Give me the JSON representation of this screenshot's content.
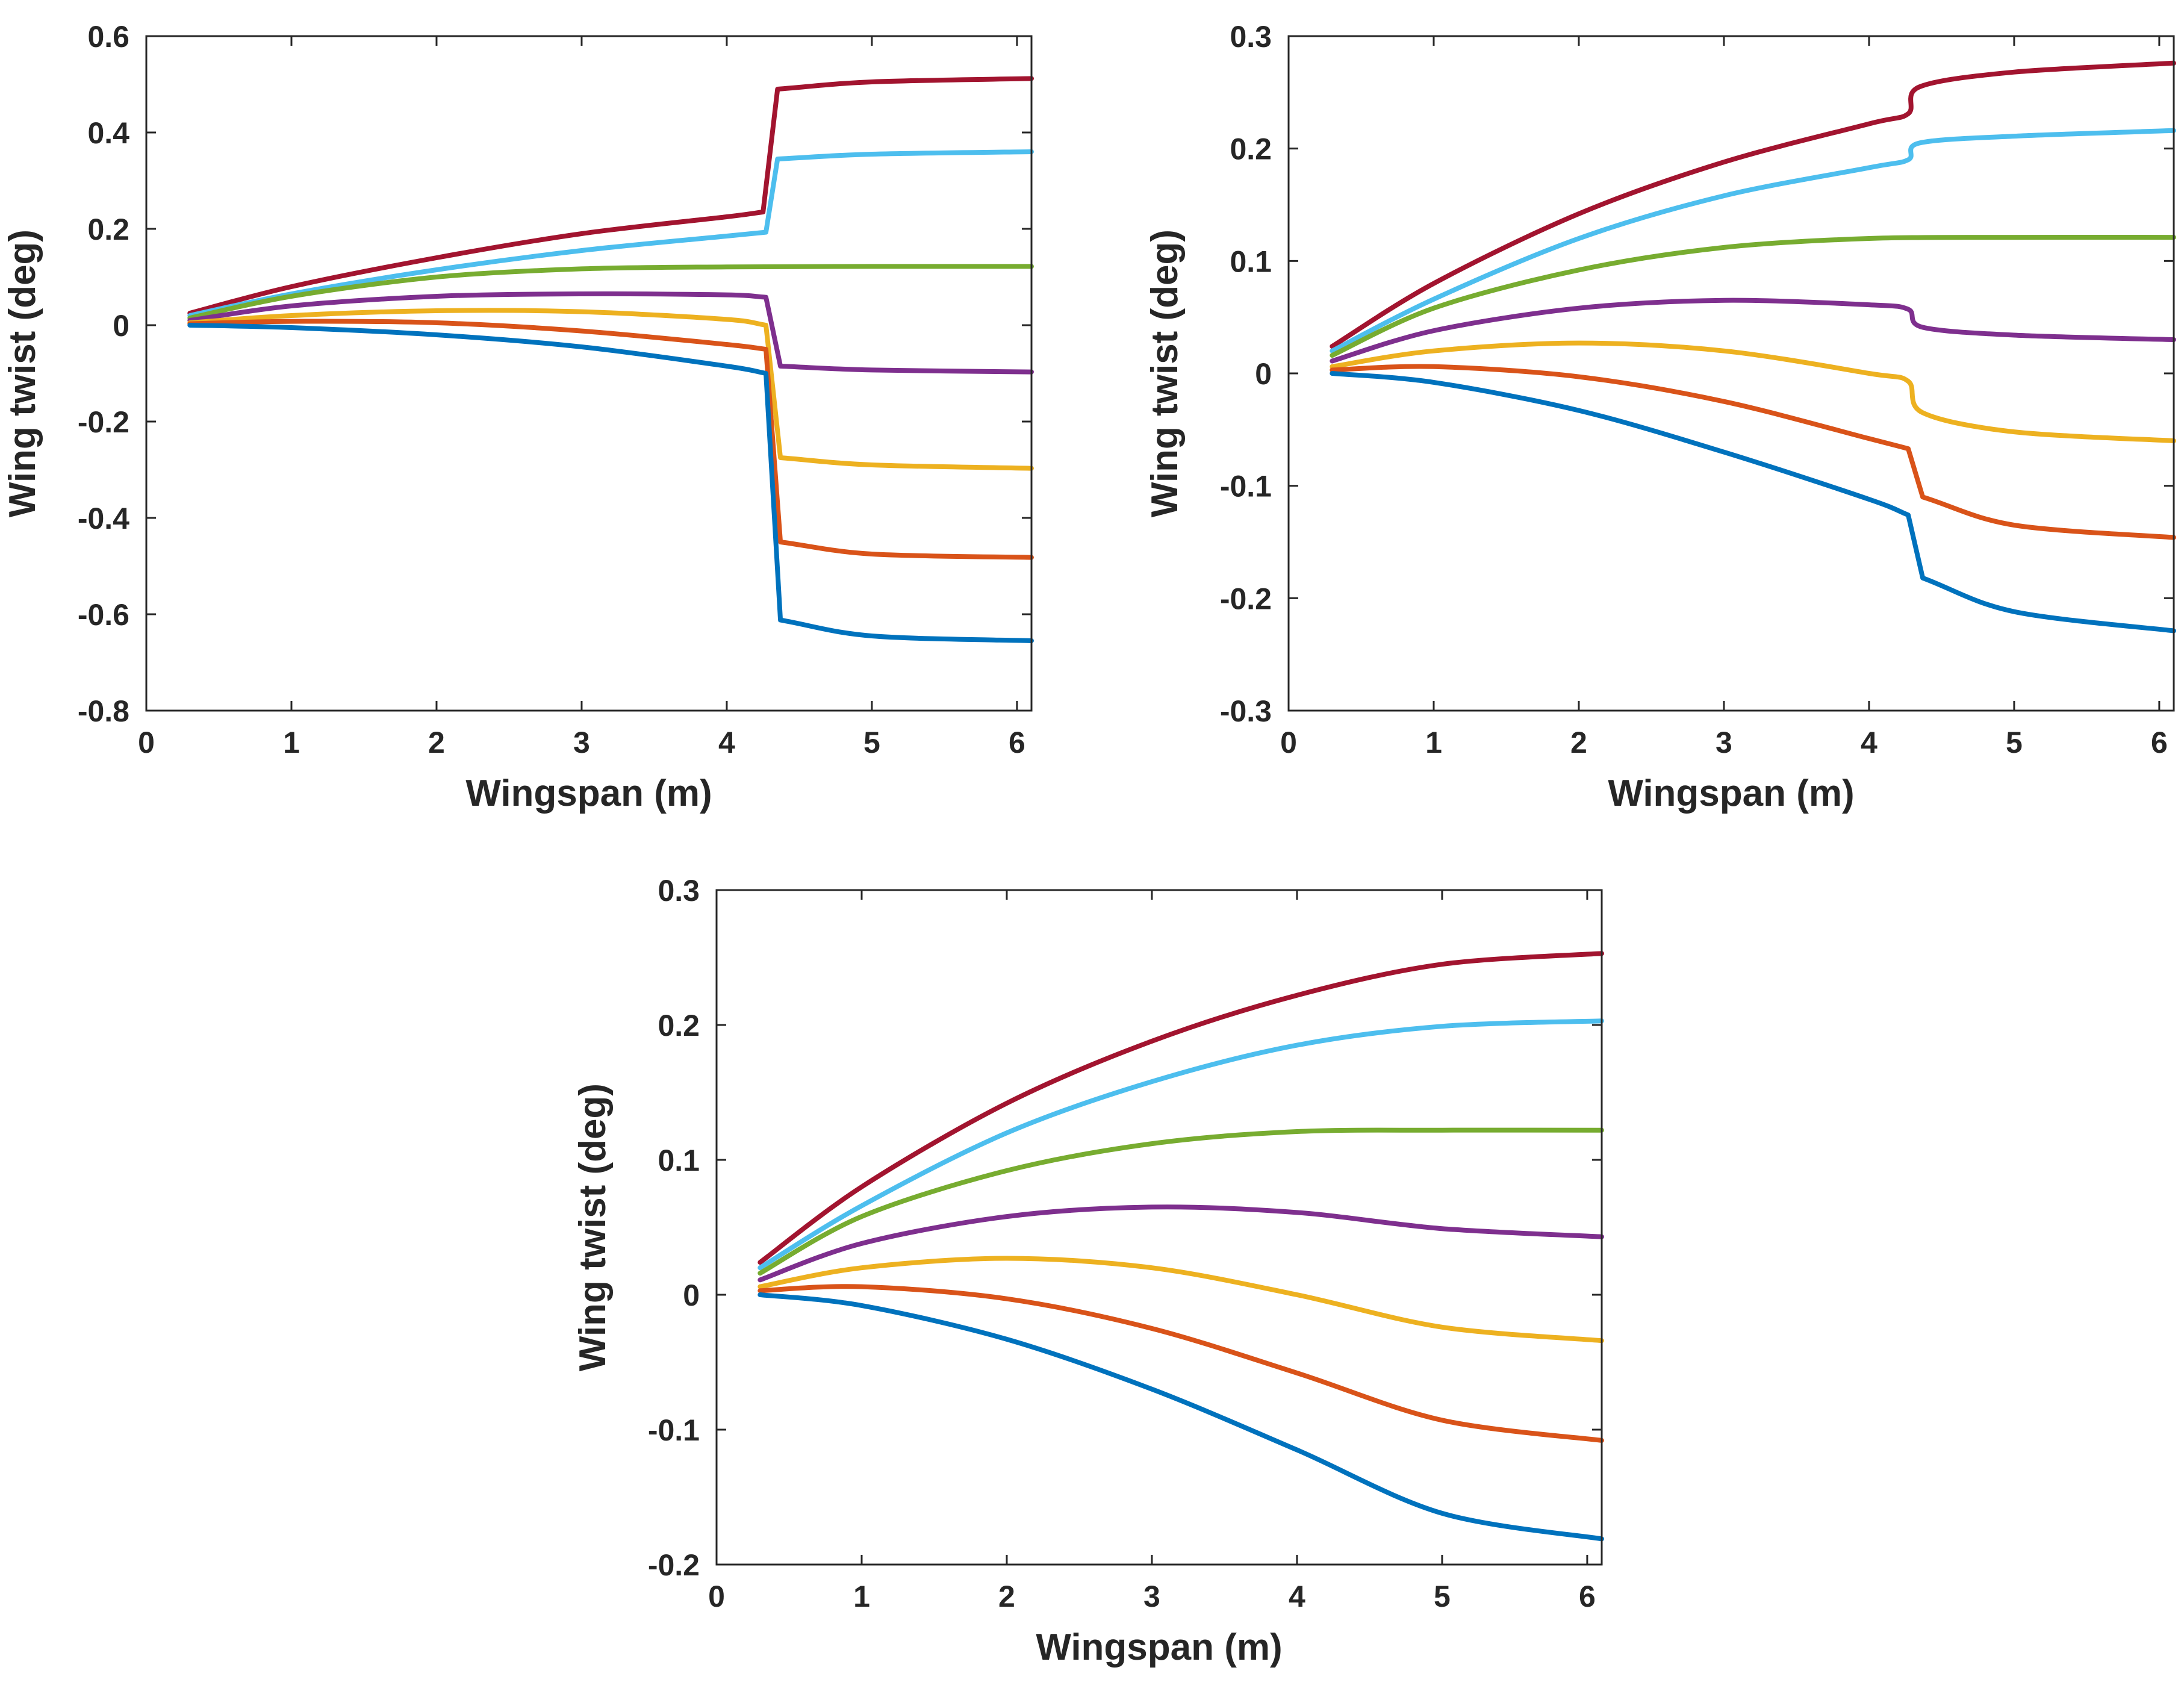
{
  "chart_data": [
    {
      "type": "line",
      "panel": "top-left",
      "title": "",
      "xlabel": "Wingspan (m)",
      "ylabel": "Wing twist (deg)",
      "xlim": [
        0,
        6.1
      ],
      "ylim": [
        -0.8,
        0.6
      ],
      "xticks": [
        "0",
        "1",
        "2",
        "3",
        "4",
        "5",
        "6"
      ],
      "yticks": [
        "-0.8",
        "-0.6",
        "-0.4",
        "-0.2",
        "0",
        "0.2",
        "0.4",
        "0.6"
      ],
      "series": [
        {
          "name": "series-1",
          "color": "#A2142F",
          "x": [
            0.3,
            1,
            2,
            3,
            4,
            4.25,
            4.35,
            5,
            6.1
          ],
          "y": [
            0.025,
            0.08,
            0.14,
            0.19,
            0.225,
            0.235,
            0.49,
            0.505,
            0.512
          ]
        },
        {
          "name": "series-2",
          "color": "#4DBEEE",
          "x": [
            0.3,
            1,
            2,
            3,
            4,
            4.27,
            4.35,
            5,
            6.1
          ],
          "y": [
            0.02,
            0.065,
            0.115,
            0.155,
            0.185,
            0.193,
            0.345,
            0.355,
            0.36
          ]
        },
        {
          "name": "series-3",
          "color": "#77AC30",
          "x": [
            0.3,
            1,
            2,
            3,
            4,
            5,
            6.1
          ],
          "y": [
            0.015,
            0.06,
            0.1,
            0.117,
            0.121,
            0.122,
            0.122
          ]
        },
        {
          "name": "series-4",
          "color": "#7E2F8E",
          "x": [
            0.3,
            1,
            2,
            3,
            4,
            4.27,
            4.37,
            5,
            6.1
          ],
          "y": [
            0.01,
            0.04,
            0.06,
            0.065,
            0.063,
            0.058,
            -0.085,
            -0.093,
            -0.097
          ]
        },
        {
          "name": "series-5",
          "color": "#EDB120",
          "x": [
            0.3,
            1,
            2,
            3,
            4,
            4.27,
            4.37,
            5,
            6.1
          ],
          "y": [
            0.005,
            0.02,
            0.03,
            0.028,
            0.012,
            0.0,
            -0.275,
            -0.29,
            -0.297
          ]
        },
        {
          "name": "series-6",
          "color": "#D95319",
          "x": [
            0.3,
            1,
            2,
            3,
            4,
            4.27,
            4.37,
            5,
            6.1
          ],
          "y": [
            0.003,
            0.008,
            0.005,
            -0.012,
            -0.04,
            -0.05,
            -0.45,
            -0.475,
            -0.482
          ]
        },
        {
          "name": "series-7",
          "color": "#0072BD",
          "x": [
            0.3,
            1,
            2,
            3,
            4,
            4.27,
            4.37,
            5,
            6.1
          ],
          "y": [
            0.0,
            -0.005,
            -0.02,
            -0.045,
            -0.085,
            -0.1,
            -0.612,
            -0.645,
            -0.655
          ]
        }
      ]
    },
    {
      "type": "line",
      "panel": "top-right",
      "title": "",
      "xlabel": "Wingspan (m)",
      "ylabel": "Wing twist (deg)",
      "xlim": [
        0,
        6.1
      ],
      "ylim": [
        -0.3,
        0.3
      ],
      "xticks": [
        "0",
        "1",
        "2",
        "3",
        "4",
        "5",
        "6"
      ],
      "yticks": [
        "-0.3",
        "-0.2",
        "-0.1",
        "0",
        "0.1",
        "0.2",
        "0.3"
      ],
      "series": [
        {
          "name": "series-1",
          "color": "#A2142F",
          "x": [
            0.3,
            1,
            2,
            3,
            4,
            4.27,
            4.35,
            5,
            6.1
          ],
          "y": [
            0.024,
            0.08,
            0.142,
            0.188,
            0.222,
            0.231,
            0.255,
            0.268,
            0.276
          ]
        },
        {
          "name": "series-2",
          "color": "#4DBEEE",
          "x": [
            0.3,
            1,
            2,
            3,
            4,
            4.27,
            4.35,
            5,
            6.1
          ],
          "y": [
            0.02,
            0.066,
            0.12,
            0.158,
            0.183,
            0.19,
            0.205,
            0.211,
            0.216
          ]
        },
        {
          "name": "series-3",
          "color": "#77AC30",
          "x": [
            0.3,
            1,
            2,
            3,
            4,
            5,
            6.1
          ],
          "y": [
            0.016,
            0.058,
            0.092,
            0.112,
            0.12,
            0.121,
            0.121
          ]
        },
        {
          "name": "series-4",
          "color": "#7E2F8E",
          "x": [
            0.3,
            1,
            2,
            3,
            4,
            4.27,
            4.37,
            5,
            6.1
          ],
          "y": [
            0.011,
            0.038,
            0.058,
            0.065,
            0.061,
            0.057,
            0.041,
            0.034,
            0.03
          ]
        },
        {
          "name": "series-5",
          "color": "#EDB120",
          "x": [
            0.3,
            1,
            2,
            3,
            4,
            4.27,
            4.37,
            5,
            6.1
          ],
          "y": [
            0.006,
            0.02,
            0.027,
            0.02,
            0.0,
            -0.007,
            -0.035,
            -0.052,
            -0.06
          ]
        },
        {
          "name": "series-6",
          "color": "#D95319",
          "x": [
            0.3,
            1,
            2,
            3,
            4,
            4.27,
            4.37,
            5,
            6.1
          ],
          "y": [
            0.003,
            0.006,
            -0.003,
            -0.025,
            -0.058,
            -0.067,
            -0.11,
            -0.135,
            -0.146
          ]
        },
        {
          "name": "series-7",
          "color": "#0072BD",
          "x": [
            0.3,
            1,
            2,
            3,
            4,
            4.27,
            4.37,
            5,
            6.1
          ],
          "y": [
            0.0,
            -0.008,
            -0.033,
            -0.07,
            -0.112,
            -0.126,
            -0.182,
            -0.212,
            -0.229
          ]
        }
      ]
    },
    {
      "type": "line",
      "panel": "bottom-center",
      "title": "",
      "xlabel": "Wingspan (m)",
      "ylabel": "Wing twist (deg)",
      "xlim": [
        0,
        6.1
      ],
      "ylim": [
        -0.2,
        0.3
      ],
      "xticks": [
        "0",
        "1",
        "2",
        "3",
        "4",
        "5",
        "6"
      ],
      "yticks": [
        "-0.2",
        "-0.1",
        "0",
        "0.1",
        "0.2",
        "0.3"
      ],
      "series": [
        {
          "name": "series-1",
          "color": "#A2142F",
          "x": [
            0.3,
            1,
            2,
            3,
            4,
            5,
            6.1
          ],
          "y": [
            0.024,
            0.08,
            0.142,
            0.188,
            0.222,
            0.245,
            0.253
          ]
        },
        {
          "name": "series-2",
          "color": "#4DBEEE",
          "x": [
            0.3,
            1,
            2,
            3,
            4,
            5,
            6.1
          ],
          "y": [
            0.02,
            0.066,
            0.12,
            0.158,
            0.185,
            0.199,
            0.203
          ]
        },
        {
          "name": "series-3",
          "color": "#77AC30",
          "x": [
            0.3,
            1,
            2,
            3,
            4,
            5,
            6.1
          ],
          "y": [
            0.016,
            0.058,
            0.092,
            0.112,
            0.121,
            0.122,
            0.122
          ]
        },
        {
          "name": "series-4",
          "color": "#7E2F8E",
          "x": [
            0.3,
            1,
            2,
            3,
            4,
            5,
            6.1
          ],
          "y": [
            0.011,
            0.038,
            0.058,
            0.065,
            0.061,
            0.049,
            0.043
          ]
        },
        {
          "name": "series-5",
          "color": "#EDB120",
          "x": [
            0.3,
            1,
            2,
            3,
            4,
            5,
            6.1
          ],
          "y": [
            0.006,
            0.02,
            0.027,
            0.02,
            0.0,
            -0.024,
            -0.034
          ]
        },
        {
          "name": "series-6",
          "color": "#D95319",
          "x": [
            0.3,
            1,
            2,
            3,
            4,
            5,
            6.1
          ],
          "y": [
            0.003,
            0.006,
            -0.003,
            -0.025,
            -0.058,
            -0.093,
            -0.108
          ]
        },
        {
          "name": "series-7",
          "color": "#0072BD",
          "x": [
            0.3,
            1,
            2,
            3,
            4,
            5,
            6.1
          ],
          "y": [
            0.0,
            -0.008,
            -0.033,
            -0.07,
            -0.115,
            -0.162,
            -0.181
          ]
        }
      ]
    }
  ]
}
